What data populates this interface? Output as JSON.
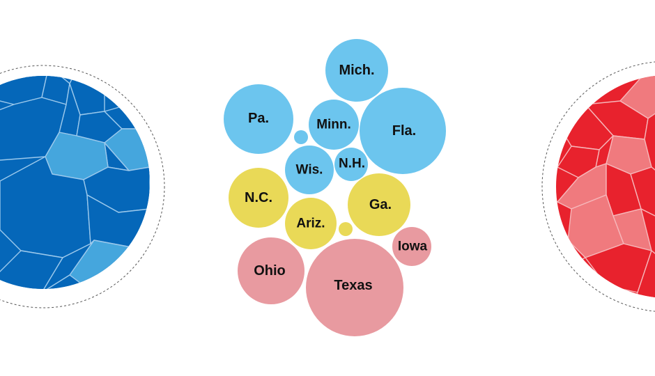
{
  "colors": {
    "dem_solid": "#0567b9",
    "dem_lean": "#45a6dd",
    "dem_cell_stroke": "#9cc9ec",
    "rep_solid": "#e8222d",
    "rep_lean": "#f07a7e",
    "rep_cell_stroke": "#f6b7ba",
    "tossup_blue": "#6cc5ee",
    "tossup_yellow": "#e9d957",
    "tossup_red": "#e89aa0",
    "ring": "#555555"
  },
  "states": [
    {
      "label": "Mich.",
      "group": "blue"
    },
    {
      "label": "Pa.",
      "group": "blue"
    },
    {
      "label": "Minn.",
      "group": "blue"
    },
    {
      "label": "Fla.",
      "group": "blue"
    },
    {
      "label": "Wis.",
      "group": "blue"
    },
    {
      "label": "N.H.",
      "group": "blue"
    },
    {
      "label": "",
      "group": "blue"
    },
    {
      "label": "N.C.",
      "group": "yellow"
    },
    {
      "label": "Ga.",
      "group": "yellow"
    },
    {
      "label": "Ariz.",
      "group": "yellow"
    },
    {
      "label": "",
      "group": "yellow"
    },
    {
      "label": "Iowa",
      "group": "red"
    },
    {
      "label": "Ohio",
      "group": "red"
    },
    {
      "label": "Texas",
      "group": "red"
    }
  ]
}
